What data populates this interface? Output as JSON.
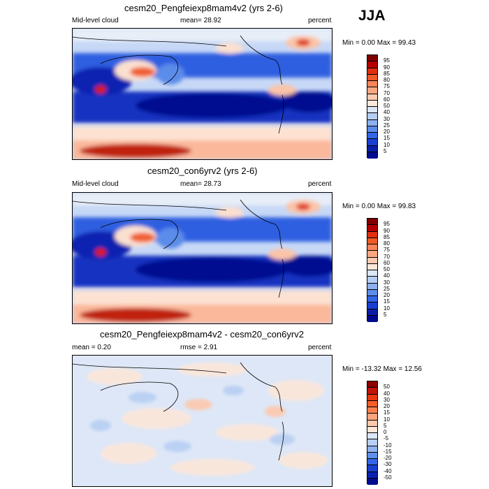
{
  "season": "JJA",
  "scales": {
    "full": {
      "labels": [
        "95",
        "90",
        "85",
        "80",
        "75",
        "70",
        "60",
        "50",
        "40",
        "30",
        "25",
        "20",
        "15",
        "10",
        "5"
      ],
      "colors": [
        "#7f0000",
        "#b30000",
        "#e03010",
        "#f05a28",
        "#f8845a",
        "#fba784",
        "#fdcbb0",
        "#fbe8da",
        "#dbe6f6",
        "#b5cdf3",
        "#8db1ee",
        "#5c8cea",
        "#3366e6",
        "#1a3fd2",
        "#0a1fa8",
        "#000a8c"
      ]
    },
    "diff": {
      "labels": [
        "50",
        "40",
        "30",
        "20",
        "15",
        "10",
        "5",
        "0",
        "-5",
        "-10",
        "-15",
        "-20",
        "-30",
        "-40",
        "-50"
      ],
      "colors": [
        "#8b0000",
        "#c0140a",
        "#e83a10",
        "#f55e28",
        "#f9814e",
        "#fca47c",
        "#fdc8ac",
        "#fde6d9",
        "#dce7f7",
        "#b8cff3",
        "#90b3ee",
        "#5f8feb",
        "#3366e6",
        "#1a40d0",
        "#0a22b0",
        "#000d8c"
      ]
    }
  },
  "panels": [
    {
      "title": "cesm20_Pengfeiexp8mam4v2 (yrs 2-6)",
      "left_label": "Mid-level cloud",
      "center_label": "mean=  28.92",
      "right_label": "percent",
      "minmax": "Min =   0.00 Max =  99.43",
      "scale": "full"
    },
    {
      "title": "cesm20_con6yrv2 (yrs 2-6)",
      "left_label": "Mid-level cloud",
      "center_label": "mean=  28.73",
      "right_label": "percent",
      "minmax": "Min =   0.00 Max =  99.83",
      "scale": "full"
    },
    {
      "title": "cesm20_Pengfeiexp8mam4v2 - cesm20_con6yrv2",
      "left_label": "mean =   0.20",
      "center_label": "rmse =   2.91",
      "right_label": "percent",
      "minmax": "Min = -13.32 Max =  12.56",
      "scale": "diff"
    }
  ]
}
